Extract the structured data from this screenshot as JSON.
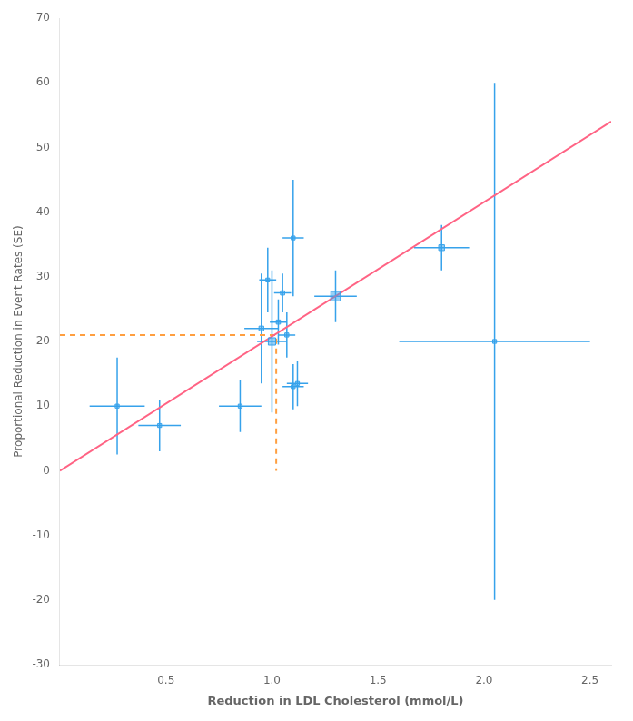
{
  "chart_data": {
    "type": "scatter",
    "xlabel": "Reduction in LDL Cholesterol (mmol/L)",
    "ylabel": "Proportional Reduction in Event Rates (SE)",
    "x": [
      0.27,
      0.47,
      0.85,
      0.95,
      0.98,
      1.0,
      1.03,
      1.05,
      1.07,
      1.1,
      1.1,
      1.12,
      1.3,
      1.8,
      2.05
    ],
    "values": [
      10.0,
      7.0,
      10.0,
      22.0,
      29.5,
      20.0,
      23.0,
      27.5,
      21.0,
      36.0,
      13.0,
      13.5,
      27.0,
      34.5,
      20.0
    ],
    "xerr": [
      0.13,
      0.1,
      0.1,
      0.08,
      0.04,
      0.07,
      0.04,
      0.04,
      0.04,
      0.05,
      0.05,
      0.05,
      0.1,
      0.13,
      0.45
    ],
    "yerr": [
      7.5,
      4.0,
      4.0,
      8.5,
      5.0,
      11.0,
      3.5,
      3.0,
      3.5,
      9.0,
      3.5,
      3.5,
      4.0,
      3.5,
      40.0
    ],
    "sizes": [
      36,
      36,
      36,
      55,
      36,
      130,
      42,
      42,
      38,
      36,
      36,
      36,
      220,
      80,
      36
    ],
    "marker": "square",
    "lines": [
      {
        "x": [
          0.0,
          2.6
        ],
        "y": [
          0.0,
          54.0
        ],
        "line_style": "solid"
      },
      {
        "x": [
          0.0,
          1.02,
          1.02
        ],
        "y": [
          21.0,
          21.0,
          0.0
        ],
        "line_style": "dashed"
      }
    ],
    "xlim": [
      0.0,
      2.6
    ],
    "ylim": [
      -30,
      70
    ],
    "xticks": [
      0.5,
      {
        "value": 1.0,
        "label": "1.0"
      },
      1.5,
      {
        "value": 2.0,
        "label": "2.0"
      },
      2.5
    ],
    "yticks": [
      -30,
      -20,
      -10,
      0,
      10,
      20,
      30,
      40,
      50,
      60,
      70
    ],
    "grid": false
  }
}
